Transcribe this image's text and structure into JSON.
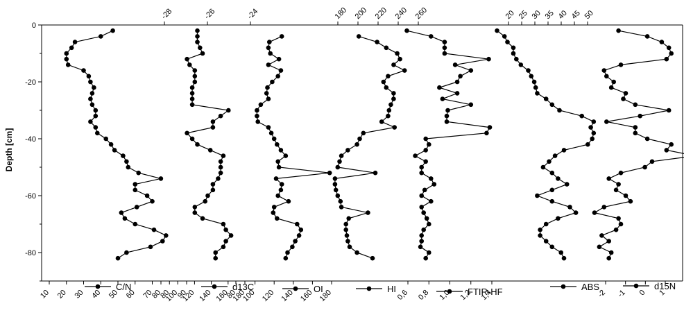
{
  "chart_data": {
    "type": "line",
    "orientation": "vertical-profile",
    "ylabel": "Depth [cm]",
    "ylim": [
      -90,
      0
    ],
    "yticks": [
      0,
      -20,
      -40,
      -60,
      -80
    ],
    "series": [
      {
        "name": "C/N",
        "axis": "bottom",
        "ticks": [
          "10",
          "20",
          "30",
          "40",
          "50",
          "60",
          "70",
          "80",
          "90"
        ],
        "depth": [
          -2,
          -4,
          -6,
          -8,
          -10,
          -12,
          -14,
          -16,
          -18,
          -20,
          -22,
          -24,
          -26,
          -28,
          -30,
          -32,
          -34,
          -36,
          -38,
          -40,
          -42,
          -44,
          -46,
          -48,
          -50,
          -52,
          -54,
          -56,
          -58,
          -60,
          -62,
          -64,
          -66,
          -68,
          -70,
          -72,
          -74,
          -76,
          -78,
          -80,
          -82
        ],
        "values": [
          47,
          40,
          25,
          23,
          20,
          20,
          21,
          30,
          33,
          34,
          36,
          35,
          34,
          35,
          37,
          37,
          34,
          37,
          38,
          43,
          46,
          48,
          53,
          55,
          56,
          62,
          75,
          60,
          60,
          67,
          70,
          61,
          52,
          54,
          60,
          71,
          78,
          76,
          69,
          55,
          50
        ]
      },
      {
        "name": "d13C",
        "axis": "bottom",
        "ticks": [
          "80",
          "100",
          "120",
          "140",
          "160",
          "180"
        ],
        "depth": [
          -2,
          -4,
          -6,
          -8,
          -10,
          -12,
          -14,
          -16,
          -18,
          -20,
          -22,
          -24,
          -26,
          -28,
          -30,
          -32,
          -34,
          -36,
          -38,
          -40,
          -42,
          -44,
          -46,
          -48,
          -50,
          -52,
          -54,
          -56,
          -58,
          -60,
          -62,
          -64,
          -66,
          -68,
          -70,
          -72,
          -74,
          -76,
          -78,
          -80,
          -82
        ],
        "values": [
          -26.2,
          -26.2,
          -26.2,
          -26.1,
          -26,
          -26.6,
          -26.5,
          -26.3,
          -26.3,
          -26.3,
          -26.4,
          -26.4,
          -26.4,
          -26.4,
          -25,
          -25.3,
          -25.6,
          -25.6,
          -26.6,
          -26.4,
          -26.2,
          -25.7,
          -25.2,
          -25.3,
          -25.3,
          -25.3,
          -25.4,
          -25.6,
          -25.6,
          -25.8,
          -25.9,
          -26.3,
          -26.3,
          -26,
          -25.2,
          -25.1,
          -24.9,
          -25.1,
          -25.2,
          -25.5,
          -25.5
        ]
      },
      {
        "name": "OI",
        "axis": "bottom",
        "ticks": [
          "80",
          "100",
          "120",
          "140",
          "160",
          "180"
        ],
        "depth": [
          -4,
          -6,
          -8,
          -10,
          -12,
          -14,
          -16,
          -18,
          -20,
          -22,
          -24,
          -26,
          -28,
          -30,
          -32,
          -34,
          -36,
          -38,
          -40,
          -42,
          -44,
          -46,
          -48,
          -50,
          -52,
          -54,
          -56,
          -58,
          -60,
          -62,
          -64,
          -66,
          -68,
          -70,
          -72,
          -74,
          -76,
          -78,
          -80,
          -82
        ],
        "values": [
          128,
          115,
          114,
          116,
          125,
          114,
          127,
          124,
          118,
          113,
          112,
          114,
          106,
          102,
          102,
          103,
          114,
          117,
          120,
          123,
          127,
          132,
          124,
          125,
          178,
          122,
          128,
          127,
          124,
          135,
          120,
          119,
          123,
          144,
          148,
          146,
          142,
          139,
          134,
          132
        ]
      },
      {
        "name": "HI",
        "axis": "top",
        "ticks": [
          "180",
          "200",
          "220",
          "240",
          "260"
        ],
        "depth": [
          -4,
          -6,
          -8,
          -10,
          -12,
          -14,
          -16,
          -18,
          -20,
          -22,
          -24,
          -26,
          -28,
          -30,
          -32,
          -34,
          -36,
          -38,
          -40,
          -42,
          -44,
          -46,
          -48,
          -50,
          -52,
          -54,
          -56,
          -58,
          -60,
          -62,
          -64,
          -66,
          -68,
          -70,
          -72,
          -74,
          -76,
          -78,
          -80,
          -82
        ],
        "values": [
          195,
          215,
          225,
          237,
          240,
          233,
          245,
          227,
          222,
          225,
          233,
          233,
          230,
          228,
          227,
          220,
          234,
          200,
          196,
          193,
          183,
          176,
          174,
          172,
          213,
          169,
          169,
          170,
          172,
          175,
          176,
          205,
          184,
          181,
          181,
          182,
          183,
          185,
          193,
          210
        ]
      },
      {
        "name": "FTIR-HF",
        "axis": "bottom",
        "ticks": [
          "0,6",
          "0,8",
          "1,0",
          "1,2",
          "1,4"
        ],
        "depth": [
          -2,
          -4,
          -6,
          -8,
          -10,
          -12,
          -14,
          -16,
          -18,
          -20,
          -22,
          -24,
          -26,
          -28,
          -30,
          -32,
          -34,
          -36,
          -38,
          -40,
          -42,
          -44,
          -46,
          -48,
          -50,
          -52,
          -54,
          -56,
          -58,
          -60,
          -62,
          -64,
          -66,
          -68,
          -70,
          -72,
          -74,
          -76,
          -78,
          -80,
          -82
        ],
        "values": [
          0.59,
          0.82,
          0.95,
          0.95,
          0.95,
          1.37,
          1.05,
          1.2,
          1.1,
          1.07,
          0.9,
          1.07,
          0.93,
          1.2,
          0.98,
          0.97,
          0.97,
          1.38,
          1.35,
          0.77,
          0.8,
          0.77,
          0.67,
          0.77,
          0.73,
          0.73,
          0.82,
          0.85,
          0.76,
          0.73,
          0.82,
          0.73,
          0.75,
          0.78,
          0.8,
          0.75,
          0.73,
          0.73,
          0.72,
          0.8,
          0.77
        ]
      },
      {
        "name": "ABS",
        "axis": "top",
        "ticks": [
          "20",
          "25",
          "30",
          "35",
          "40",
          "45",
          "50"
        ],
        "depth": [
          -2,
          -4,
          -6,
          -8,
          -10,
          -12,
          -14,
          -16,
          -18,
          -20,
          -22,
          -24,
          -26,
          -28,
          -30,
          -32,
          -34,
          -36,
          -38,
          -40,
          -42,
          -44,
          -46,
          -48,
          -50,
          -52,
          -54,
          -56,
          -58,
          -60,
          -62,
          -64,
          -66,
          -68,
          -70,
          -72,
          -74,
          -76,
          -78,
          -80,
          -82
        ],
        "values": [
          18.5,
          21,
          22,
          24,
          24,
          25,
          26.5,
          29,
          30,
          31,
          31.5,
          32,
          35,
          37,
          39.5,
          47,
          51,
          50,
          51,
          50.5,
          49,
          41,
          38,
          36,
          34,
          37,
          39,
          42,
          37,
          32,
          37,
          43,
          45,
          39,
          35,
          33,
          33,
          35,
          37,
          40,
          41
        ]
      },
      {
        "name": "d15N",
        "axis": "bottom",
        "ticks": [
          "-2",
          "-1",
          "0",
          "1"
        ],
        "depth": [
          -2,
          -4,
          -6,
          -8,
          -10,
          -12,
          -14,
          -16,
          -18,
          -20,
          -22,
          -24,
          -26,
          -28,
          -30,
          -32,
          -34,
          -36,
          -38,
          -40,
          -42,
          -44,
          -46,
          -48,
          -50,
          -52,
          -54,
          -56,
          -58,
          -60,
          -62,
          -64,
          -66,
          -68,
          -70,
          -72,
          -74,
          -76,
          -78,
          -80,
          -82
        ],
        "values": [
          -1.2,
          0,
          0.6,
          0.9,
          1,
          0.8,
          -1.1,
          -1.8,
          -1.7,
          -1.4,
          -1.5,
          -0.9,
          -1,
          -0.5,
          0.9,
          -0.3,
          -1.7,
          -0.5,
          -0.5,
          0,
          1,
          0.8,
          2,
          0.2,
          -0.1,
          -1.1,
          -1.6,
          -1.2,
          -1.3,
          -0.9,
          -0.7,
          -1.8,
          -2.2,
          -1.2,
          -1.1,
          -1.3,
          -1.9,
          -1.6,
          -2,
          -1.5,
          -1.6
        ]
      }
    ]
  }
}
